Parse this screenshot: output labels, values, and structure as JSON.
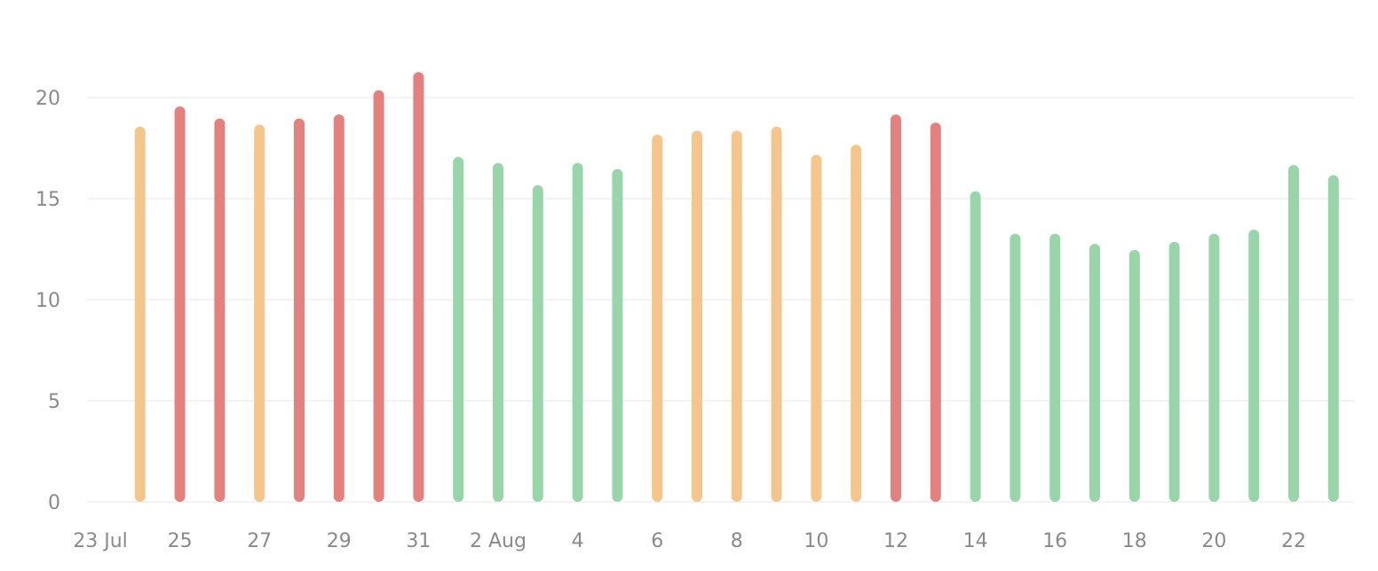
{
  "chart_data": {
    "type": "bar",
    "title": "",
    "xlabel": "",
    "ylabel": "",
    "ylim": [
      0,
      22
    ],
    "yticks": [
      0,
      5,
      10,
      15,
      20
    ],
    "grid": true,
    "x_tick_labels": [
      {
        "date": "2024-07-23",
        "label": "23 Jul"
      },
      {
        "date": "2024-07-25",
        "label": "25"
      },
      {
        "date": "2024-07-27",
        "label": "27"
      },
      {
        "date": "2024-07-29",
        "label": "29"
      },
      {
        "date": "2024-07-31",
        "label": "31"
      },
      {
        "date": "2024-08-02",
        "label": "2 Aug"
      },
      {
        "date": "2024-08-04",
        "label": "4"
      },
      {
        "date": "2024-08-06",
        "label": "6"
      },
      {
        "date": "2024-08-08",
        "label": "8"
      },
      {
        "date": "2024-08-10",
        "label": "10"
      },
      {
        "date": "2024-08-12",
        "label": "12"
      },
      {
        "date": "2024-08-14",
        "label": "14"
      },
      {
        "date": "2024-08-16",
        "label": "16"
      },
      {
        "date": "2024-08-18",
        "label": "18"
      },
      {
        "date": "2024-08-20",
        "label": "20"
      },
      {
        "date": "2024-08-22",
        "label": "22"
      }
    ],
    "colors": {
      "green": "#98d6aa",
      "orange": "#f5c68c",
      "red": "#e4817f"
    },
    "bars": [
      {
        "date": "2024-07-24",
        "value": 18.3,
        "color": "orange"
      },
      {
        "date": "2024-07-25",
        "value": 19.3,
        "color": "red"
      },
      {
        "date": "2024-07-26",
        "value": 18.7,
        "color": "red"
      },
      {
        "date": "2024-07-27",
        "value": 18.4,
        "color": "orange"
      },
      {
        "date": "2024-07-28",
        "value": 18.7,
        "color": "red"
      },
      {
        "date": "2024-07-29",
        "value": 18.9,
        "color": "red"
      },
      {
        "date": "2024-07-30",
        "value": 20.1,
        "color": "red"
      },
      {
        "date": "2024-07-31",
        "value": 21.0,
        "color": "red"
      },
      {
        "date": "2024-08-01",
        "value": 16.8,
        "color": "green"
      },
      {
        "date": "2024-08-02",
        "value": 16.5,
        "color": "green"
      },
      {
        "date": "2024-08-03",
        "value": 15.4,
        "color": "green"
      },
      {
        "date": "2024-08-04",
        "value": 16.5,
        "color": "green"
      },
      {
        "date": "2024-08-05",
        "value": 16.2,
        "color": "green"
      },
      {
        "date": "2024-08-06",
        "value": 17.9,
        "color": "orange"
      },
      {
        "date": "2024-08-07",
        "value": 18.1,
        "color": "orange"
      },
      {
        "date": "2024-08-08",
        "value": 18.1,
        "color": "orange"
      },
      {
        "date": "2024-08-09",
        "value": 18.3,
        "color": "orange"
      },
      {
        "date": "2024-08-10",
        "value": 16.9,
        "color": "orange"
      },
      {
        "date": "2024-08-11",
        "value": 17.4,
        "color": "orange"
      },
      {
        "date": "2024-08-12",
        "value": 18.9,
        "color": "red"
      },
      {
        "date": "2024-08-13",
        "value": 18.5,
        "color": "red"
      },
      {
        "date": "2024-08-14",
        "value": 15.1,
        "color": "green"
      },
      {
        "date": "2024-08-15",
        "value": 13.0,
        "color": "green"
      },
      {
        "date": "2024-08-16",
        "value": 13.0,
        "color": "green"
      },
      {
        "date": "2024-08-17",
        "value": 12.5,
        "color": "green"
      },
      {
        "date": "2024-08-18",
        "value": 12.2,
        "color": "green"
      },
      {
        "date": "2024-08-19",
        "value": 12.6,
        "color": "green"
      },
      {
        "date": "2024-08-20",
        "value": 13.0,
        "color": "green"
      },
      {
        "date": "2024-08-21",
        "value": 13.2,
        "color": "green"
      },
      {
        "date": "2024-08-22",
        "value": 16.4,
        "color": "green"
      },
      {
        "date": "2024-08-23",
        "value": 15.9,
        "color": "green"
      }
    ]
  }
}
